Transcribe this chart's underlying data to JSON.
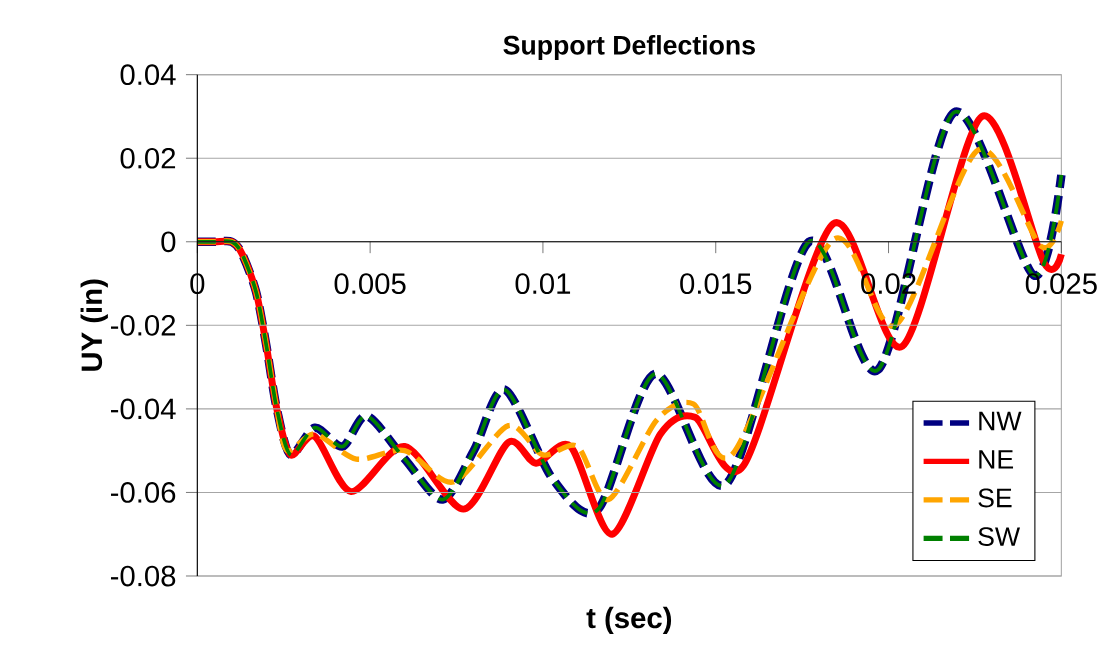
{
  "chart_data": {
    "type": "line",
    "title": "Support Deflections",
    "xlabel": "t (sec)",
    "ylabel": "UY (in)",
    "xlim": [
      0,
      0.025
    ],
    "ylim": [
      -0.08,
      0.04
    ],
    "xticks": [
      0,
      0.005,
      0.01,
      0.015,
      0.02,
      0.025
    ],
    "yticks": [
      -0.08,
      -0.06,
      -0.04,
      -0.02,
      0,
      0.02,
      0.04
    ],
    "grid": "y",
    "legend": "bottom right",
    "marker": "none",
    "series": [
      {
        "name": "NW",
        "color": "#000080",
        "line_style": "dashed",
        "x": [
          0,
          0.0005,
          0.001,
          0.0013,
          0.0017,
          0.002,
          0.0023,
          0.0027,
          0.0034,
          0.0042,
          0.0049,
          0.006,
          0.0071,
          0.008,
          0.0089,
          0.0103,
          0.0116,
          0.01325,
          0.0153,
          0.0177,
          0.0197,
          0.0219,
          0.0242,
          0.025
        ],
        "values": [
          0,
          0,
          0,
          -0.003,
          -0.012,
          -0.025,
          -0.04,
          -0.051,
          -0.0445,
          -0.049,
          -0.0417,
          -0.052,
          -0.0617,
          -0.05,
          -0.0354,
          -0.057,
          -0.064,
          -0.0316,
          -0.058,
          0,
          -0.0306,
          0.031,
          -0.008,
          0.016
        ]
      },
      {
        "name": "NE",
        "color": "#ff0000",
        "line_style": "solid",
        "x": [
          0,
          0.0005,
          0.001,
          0.0013,
          0.0017,
          0.002,
          0.0023,
          0.0027,
          0.0034,
          0.00445,
          0.006,
          0.0077,
          0.009,
          0.0098,
          0.0108,
          0.012,
          0.0134,
          0.0144,
          0.0158,
          0.0184,
          0.0204,
          0.0227,
          0.0245,
          0.025
        ],
        "values": [
          0,
          0,
          0,
          -0.003,
          -0.012,
          -0.025,
          -0.04,
          -0.051,
          -0.0466,
          -0.0598,
          -0.049,
          -0.064,
          -0.048,
          -0.053,
          -0.049,
          -0.07,
          -0.046,
          -0.042,
          -0.0536,
          0.0043,
          -0.025,
          0.03,
          -0.005,
          -0.003
        ]
      },
      {
        "name": "SE",
        "color": "#ffa500",
        "line_style": "dashed",
        "x": [
          0,
          0.0005,
          0.001,
          0.0013,
          0.0017,
          0.002,
          0.0023,
          0.0026,
          0.0034,
          0.0046,
          0.006,
          0.0074,
          0.009,
          0.01,
          0.011,
          0.0119,
          0.0133,
          0.01435,
          0.0155,
          0.0184,
          0.0202,
          0.0226,
          0.0244,
          0.025
        ],
        "values": [
          0,
          0,
          0,
          -0.003,
          -0.012,
          -0.025,
          -0.04,
          -0.05,
          -0.046,
          -0.052,
          -0.05,
          -0.0575,
          -0.044,
          -0.051,
          -0.049,
          -0.0617,
          -0.0426,
          -0.0388,
          -0.0507,
          0.0005,
          -0.02,
          0.022,
          -0.001,
          0.005
        ]
      },
      {
        "name": "SW",
        "color": "#008000",
        "line_style": "dashed",
        "x": [
          0,
          0.0005,
          0.001,
          0.0013,
          0.0017,
          0.002,
          0.0023,
          0.0027,
          0.0034,
          0.0042,
          0.0049,
          0.006,
          0.0071,
          0.008,
          0.0089,
          0.0103,
          0.0116,
          0.01325,
          0.0153,
          0.0177,
          0.0197,
          0.0219,
          0.0242,
          0.025
        ],
        "values": [
          0,
          0,
          0,
          -0.003,
          -0.012,
          -0.025,
          -0.04,
          -0.051,
          -0.0445,
          -0.049,
          -0.0417,
          -0.052,
          -0.0617,
          -0.05,
          -0.0354,
          -0.057,
          -0.064,
          -0.0316,
          -0.058,
          0,
          -0.0306,
          0.031,
          -0.008,
          0.016
        ]
      }
    ]
  }
}
